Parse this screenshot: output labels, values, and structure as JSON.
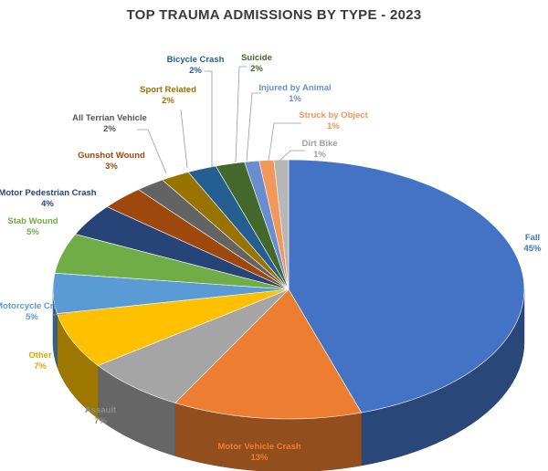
{
  "chart_data": {
    "type": "pie",
    "title": "TOP TRAUMA ADMISSIONS BY TYPE - 2023",
    "slices": [
      {
        "label": "Fall",
        "value_label": "45%",
        "value": 45,
        "color": "#4472c4"
      },
      {
        "label": "Motor Vehicle Crash",
        "value_label": "13%",
        "value": 13,
        "color": "#ed7d31"
      },
      {
        "label": "Assault",
        "value_label": "7%",
        "value": 7,
        "color": "#a5a5a5"
      },
      {
        "label": "Other",
        "value_label": "7%",
        "value": 7,
        "color": "#ffc000"
      },
      {
        "label": "Motorcycle Crash",
        "value_label": "5%",
        "value": 5,
        "color": "#5b9bd5"
      },
      {
        "label": "Stab Wound",
        "value_label": "5%",
        "value": 5,
        "color": "#70ad47"
      },
      {
        "label": "Motor Pedestrian Crash",
        "value_label": "4%",
        "value": 4,
        "color": "#264478"
      },
      {
        "label": "Gunshot Wound",
        "value_label": "3%",
        "value": 3,
        "color": "#9e480e"
      },
      {
        "label": "All Terrian Vehicle",
        "value_label": "2%",
        "value": 2,
        "color": "#636363"
      },
      {
        "label": "Sport Related",
        "value_label": "2%",
        "value": 2,
        "color": "#997300"
      },
      {
        "label": "Bicycle Crash",
        "value_label": "2%",
        "value": 2,
        "color": "#255e91"
      },
      {
        "label": "Suicide",
        "value_label": "2%",
        "value": 2,
        "color": "#43682b"
      },
      {
        "label": "Injured by Animal",
        "value_label": "1%",
        "value": 1,
        "color": "#698ed0"
      },
      {
        "label": "Struck by Object",
        "value_label": "1%",
        "value": 1,
        "color": "#f1975a"
      },
      {
        "label": "Dirt Bike",
        "value_label": "1%",
        "value": 1,
        "color": "#b7b7b7"
      }
    ],
    "label_colors": {
      "Fall": "#4472c4",
      "Motor Vehicle Crash": "#ed7d31",
      "Assault": "#8c8c8c",
      "Other": "#e0a800",
      "Motorcycle Crash": "#5b9bd5",
      "Stab Wound": "#70ad47",
      "Motor Pedestrian Crash": "#264478",
      "Gunshot Wound": "#9e480e",
      "All Terrian Vehicle": "#555555",
      "Sport Related": "#997300",
      "Bicycle Crash": "#255e91",
      "Suicide": "#43682b",
      "Injured by Animal": "#698ed0",
      "Struck by Object": "#f1975a",
      "Dirt Bike": "#a0a0a0"
    }
  }
}
